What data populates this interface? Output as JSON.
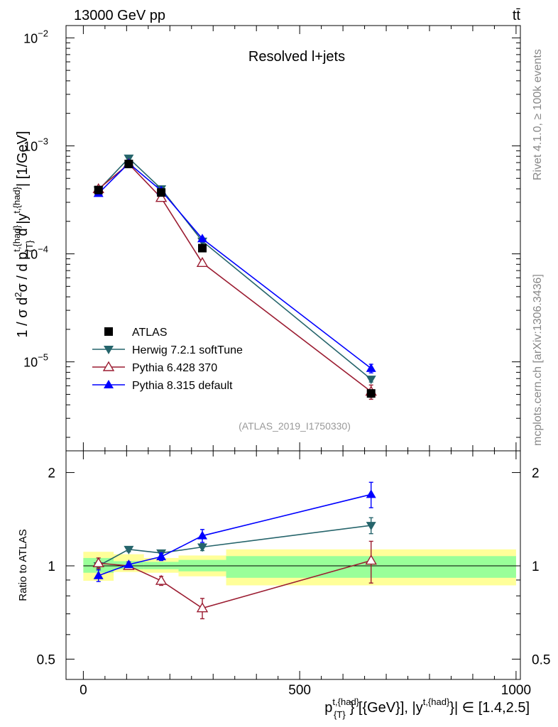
{
  "header": {
    "energy_label": "13000 GeV pp",
    "process_label": "tt̄"
  },
  "side_labels": {
    "rivet": "Rivet 4.1.0, ≥ 100k events",
    "mcplots": "mcplots.cern.ch [arXiv:1306.3436]"
  },
  "chart_data": [
    {
      "panel": "main",
      "type": "line",
      "title": "Resolved l+jets",
      "watermark": "(ATLAS_2019_I1750330)",
      "ylabel": "1 / σ d²σ / d p^{t,{had}}_{T} d |y^{t,{had}}| [1/GeV]",
      "yscale": "log",
      "ylim": [
        1.5e-06,
        0.013
      ],
      "xlim": [
        -40,
        1010
      ],
      "y_ticks": [
        {
          "value": 0.01,
          "base": "10",
          "exp": "−2"
        },
        {
          "value": 0.001,
          "base": "10",
          "exp": "−3"
        },
        {
          "value": 0.0001,
          "base": "10",
          "exp": "−4"
        },
        {
          "value": 1e-05,
          "base": "10",
          "exp": "−5"
        }
      ],
      "legend_position": "lower-left",
      "series": [
        {
          "name": "ATLAS",
          "color": "#000000",
          "marker": "square",
          "line": false,
          "x": [
            35,
            105,
            180,
            275,
            665
          ],
          "values": [
            0.00039,
            0.00068,
            0.00037,
            0.000113,
            5.1e-06
          ],
          "errors": [
            2e-05,
            3e-05,
            2e-05,
            6e-06,
            4e-07
          ]
        },
        {
          "name": "Herwig 7.2.1 softTune",
          "color": "#25646b",
          "marker": "triangle-down",
          "line": true,
          "x": [
            35,
            105,
            180,
            275,
            665
          ],
          "values": [
            0.00039,
            0.00077,
            0.0004,
            0.000131,
            6.9e-06
          ],
          "errors": [
            5e-06,
            8e-06,
            5e-06,
            2e-06,
            4e-07
          ]
        },
        {
          "name": "Pythia 6.428 370",
          "color": "#9b1c31",
          "marker": "triangle-up-open",
          "line": true,
          "x": [
            35,
            105,
            180,
            275,
            665
          ],
          "values": [
            0.000398,
            0.00068,
            0.00033,
            8.25e-05,
            5.3e-06
          ],
          "errors": [
            1e-05,
            1e-05,
            1e-05,
            3e-06,
            8e-07
          ]
        },
        {
          "name": "Pythia 8.315 default",
          "color": "#0000ff",
          "marker": "triangle-up",
          "line": true,
          "x": [
            35,
            105,
            180,
            275,
            665
          ],
          "values": [
            0.000363,
            0.00069,
            0.000385,
            0.000138,
            8.7e-06
          ],
          "errors": [
            1e-05,
            1e-05,
            1e-05,
            4e-06,
            8e-07
          ]
        }
      ]
    },
    {
      "panel": "ratio",
      "type": "line",
      "ylabel": "Ratio to ATLAS",
      "yscale": "log",
      "ylim": [
        0.43,
        2.35
      ],
      "y_ticks": [
        {
          "value": 0.5,
          "label": "0.5"
        },
        {
          "value": 1,
          "label": "1"
        },
        {
          "value": 2,
          "label": "2"
        }
      ],
      "xlabel": "p^{t,{had}}_{T} [{GeV}], |y^{t,{had}}| ∈ [1.4,2.5]",
      "x_ticks": [
        {
          "value": 0,
          "label": "0"
        },
        {
          "value": 500,
          "label": "500"
        },
        {
          "value": 1000,
          "label": "1000"
        }
      ],
      "bands": {
        "bin_edges": [
          0,
          70,
          140,
          220,
          330,
          1000
        ],
        "stat_low": [
          0.95,
          0.975,
          0.975,
          0.96,
          0.915
        ],
        "stat_high": [
          1.06,
          1.035,
          1.03,
          1.045,
          1.075
        ],
        "total_low": [
          0.895,
          0.955,
          0.95,
          0.925,
          0.865
        ],
        "total_high": [
          1.11,
          1.09,
          1.06,
          1.08,
          1.13
        ],
        "stat_color": "#99ff99",
        "total_color": "#ffff99"
      },
      "series": [
        {
          "name": "Herwig 7.2.1 softTune",
          "color": "#25646b",
          "marker": "triangle-down",
          "x": [
            35,
            105,
            180,
            275,
            665
          ],
          "values": [
            1.0,
            1.13,
            1.1,
            1.15,
            1.35
          ],
          "errors": [
            0.02,
            0.02,
            0.02,
            0.03,
            0.08
          ]
        },
        {
          "name": "Pythia 6.428 370",
          "color": "#9b1c31",
          "marker": "triangle-up-open",
          "x": [
            35,
            105,
            180,
            275,
            665
          ],
          "values": [
            1.02,
            1.0,
            0.895,
            0.73,
            1.04
          ],
          "errors": [
            0.04,
            0.02,
            0.03,
            0.055,
            0.16
          ]
        },
        {
          "name": "Pythia 8.315 default",
          "color": "#0000ff",
          "marker": "triangle-up",
          "x": [
            35,
            105,
            180,
            275,
            665
          ],
          "values": [
            0.93,
            1.01,
            1.07,
            1.25,
            1.7
          ],
          "errors": [
            0.04,
            0.02,
            0.03,
            0.06,
            0.16
          ]
        }
      ]
    }
  ]
}
